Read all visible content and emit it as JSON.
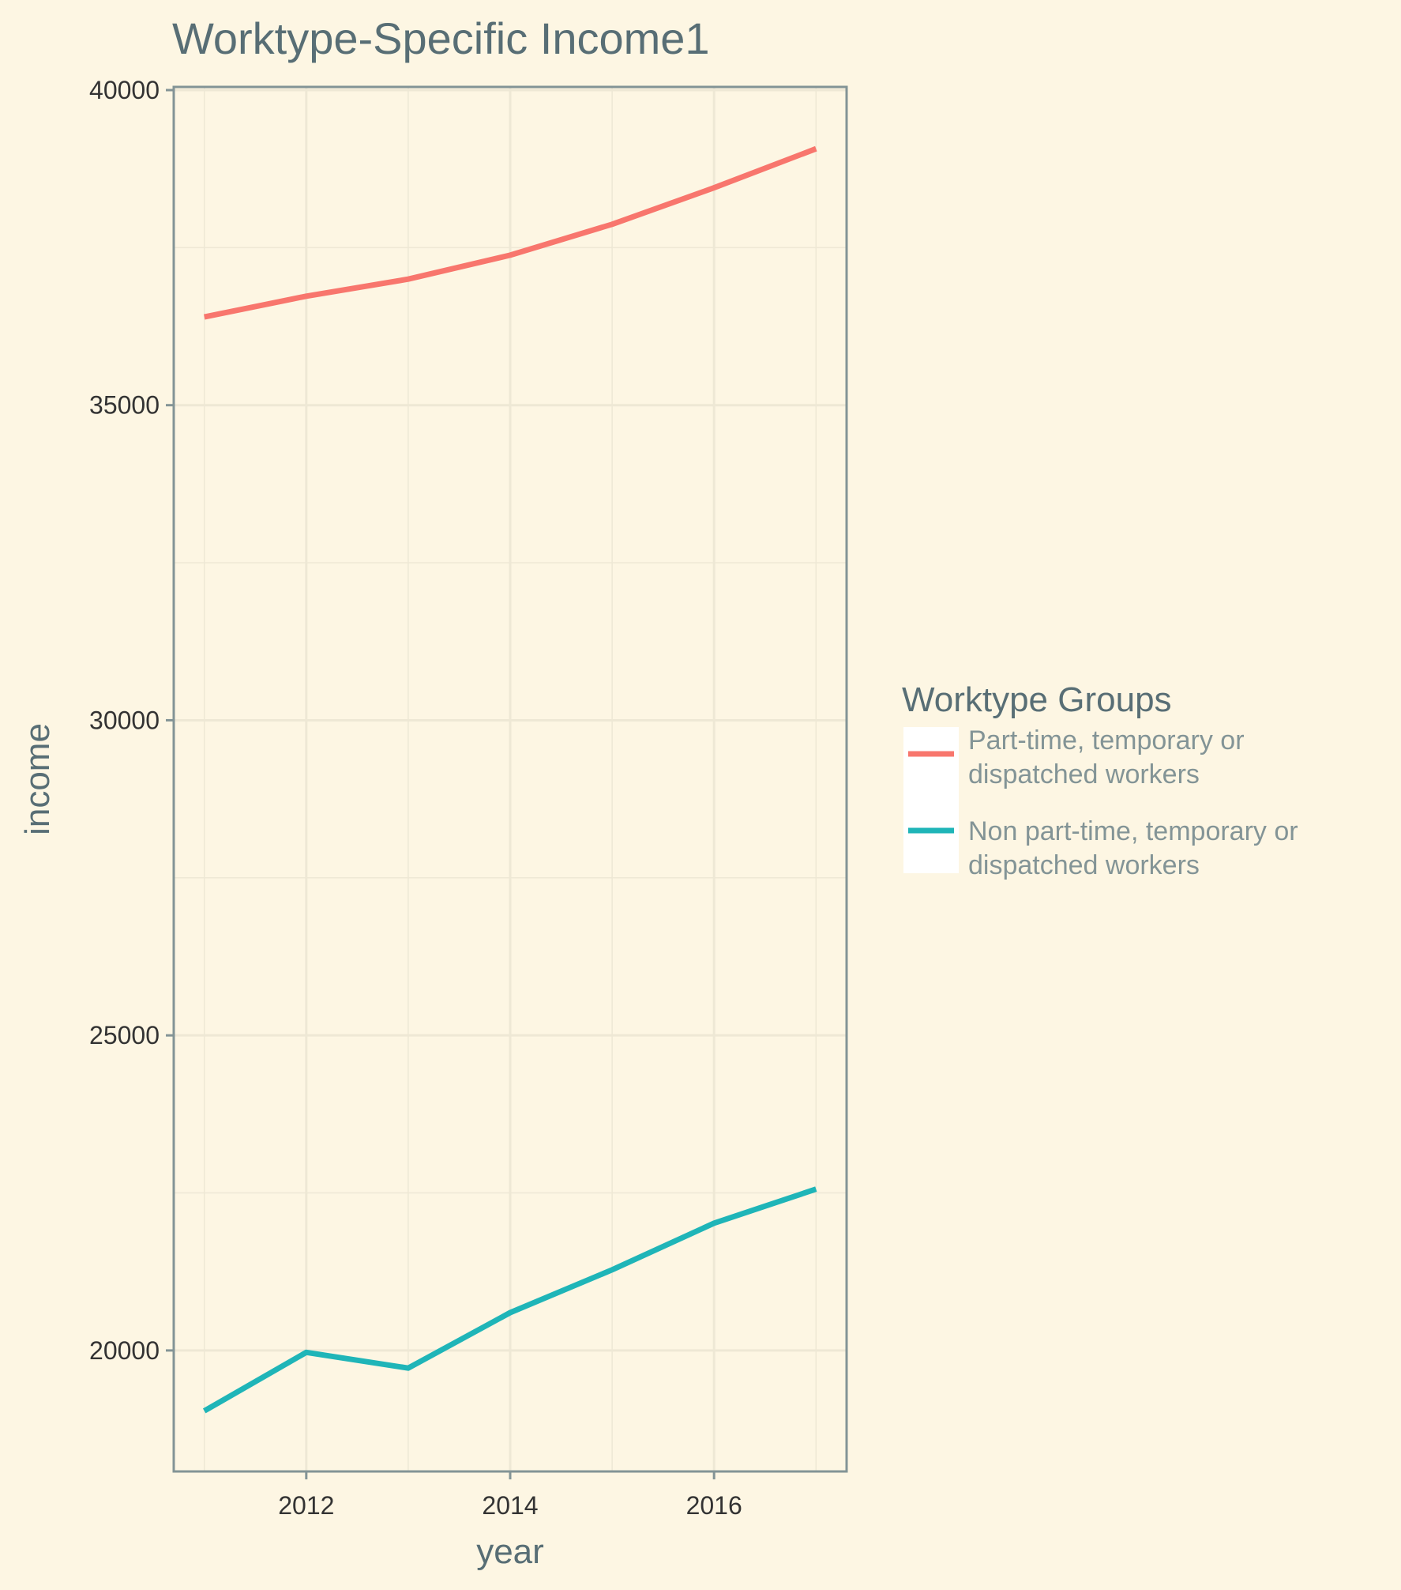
{
  "chart_data": {
    "type": "line",
    "title": "Worktype-Specific Income1",
    "xlabel": "year",
    "ylabel": "income",
    "xlim": [
      2010.7,
      2017.3
    ],
    "ylim": [
      18080,
      40050
    ],
    "x_ticks": [
      2012,
      2014,
      2016
    ],
    "y_ticks": [
      20000,
      25000,
      30000,
      35000,
      40000
    ],
    "grid": true,
    "legend": {
      "title": "Worktype Groups",
      "placement": "right"
    },
    "x": [
      2011,
      2012,
      2013,
      2014,
      2015,
      2016,
      2017
    ],
    "series": [
      {
        "name_line1": "Part-time, temporary or",
        "name_line2": "dispatched workers",
        "color": "#f8766d",
        "values": [
          36400,
          36730,
          37000,
          37380,
          37870,
          38450,
          39070
        ]
      },
      {
        "name_line1": "Non part-time, temporary or",
        "name_line2": "dispatched workers",
        "color": "#1fb5b8",
        "values": [
          19040,
          19970,
          19720,
          20600,
          21280,
          22020,
          22560
        ]
      }
    ]
  }
}
